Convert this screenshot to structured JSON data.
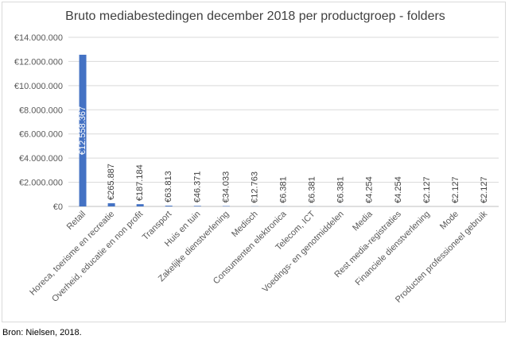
{
  "source": "Bron: Nielsen, 2018.",
  "chart_data": {
    "type": "bar",
    "title": "Bruto mediabestedingen december 2018 per productgroep - folders",
    "xlabel": "",
    "ylabel": "",
    "ylim": [
      0,
      14000000
    ],
    "y_ticks": [
      0,
      2000000,
      4000000,
      6000000,
      8000000,
      10000000,
      12000000,
      14000000
    ],
    "y_tick_labels": [
      "€0",
      "€2.000.000",
      "€4.000.000",
      "€6.000.000",
      "€8.000.000",
      "€10.000.000",
      "€12.000.000",
      "€14.000.000"
    ],
    "grid": true,
    "legend": "none",
    "bar_color": "#4472c4",
    "categories": [
      "Retail",
      "Horeca, toerisme en recreatie",
      "Overheid, educatie en non profit",
      "Transport",
      "Huis en tuin",
      "Zakelijke dienstverlening",
      "Medisch",
      "Consumenten elektronica",
      "Telecom, ICT",
      "Voedings- en genotmiddelen",
      "Media",
      "Rest media-registraties",
      "Financiele dienstverlening",
      "Mode",
      "Producten professioneel gebruik"
    ],
    "values": [
      12558367,
      265887,
      187184,
      63813,
      46371,
      34033,
      12763,
      6381,
      6381,
      6381,
      4254,
      4254,
      2127,
      2127,
      2127
    ],
    "data_labels": [
      "€12.558.367",
      "€265.887",
      "€187.184",
      "€63.813",
      "€46.371",
      "€34.033",
      "€12.763",
      "€6.381",
      "€6.381",
      "€6.381",
      "€4.254",
      "€4.254",
      "€2.127",
      "€2.127",
      "€2.127"
    ]
  }
}
